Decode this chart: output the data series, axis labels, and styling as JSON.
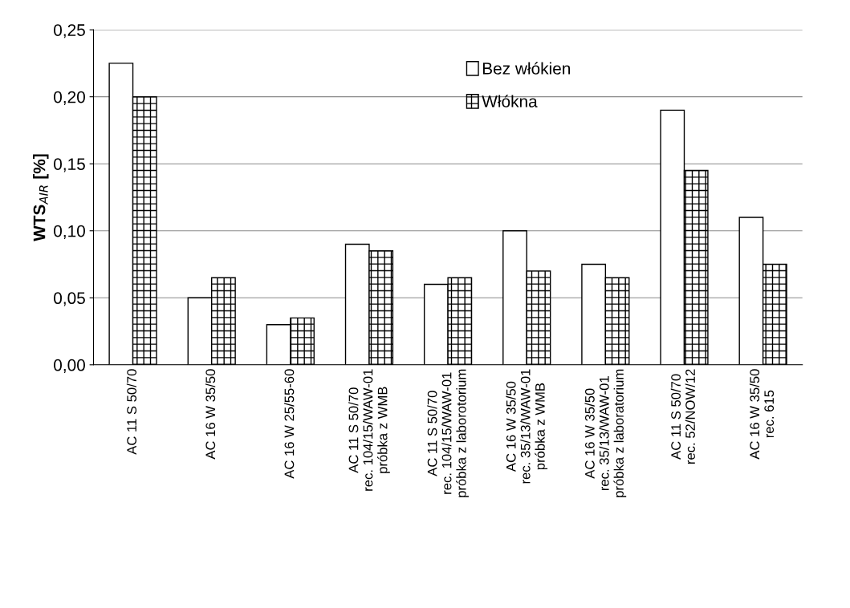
{
  "chart_data": {
    "type": "bar",
    "ylabel": "WTS$_{AIR}$ [%]",
    "categories": [
      "AC 11 S 50/70",
      "AC 16 W 35/50",
      "AC 16 W 25/55-60",
      "AC 11 S 50/70\nrec. 104/15/WAW-01\npróbka z WMB",
      "AC 11 S 50/70\nrec. 104/15/WAW-01\npróbka z laborotorium",
      "AC 16 W 35/50\nrec. 35/13/WAW-01\npróbka z WMB",
      "AC 16 W 35/50\nrec. 35/13/WAW-01\npróbka z laboratorium",
      "AC 11 S 50/70\nrec. 52/NOW/12",
      "AC 16 W 35/50\nrec. 615"
    ],
    "series": [
      {
        "name": "Bez włókien",
        "color": "#ffffff",
        "values": [
          0.225,
          0.05,
          0.03,
          0.09,
          0.06,
          0.1,
          0.075,
          0.19,
          0.11
        ]
      },
      {
        "name": "Włókna",
        "color": "#000000",
        "values": [
          0.2,
          0.065,
          0.035,
          0.085,
          0.065,
          0.07,
          0.065,
          0.145,
          0.075
        ]
      }
    ],
    "ylim": [
      0,
      0.25
    ],
    "yticks": [
      {
        "value": 0,
        "label": "0,00"
      },
      {
        "value": 0.05,
        "label": "0,05"
      },
      {
        "value": 0.1,
        "label": "0,10"
      },
      {
        "value": 0.15,
        "label": "0,15"
      },
      {
        "value": 0.2,
        "label": "0,20"
      },
      {
        "value": 0.25,
        "label": "0,25"
      }
    ],
    "grid": "y",
    "legend": "top"
  }
}
